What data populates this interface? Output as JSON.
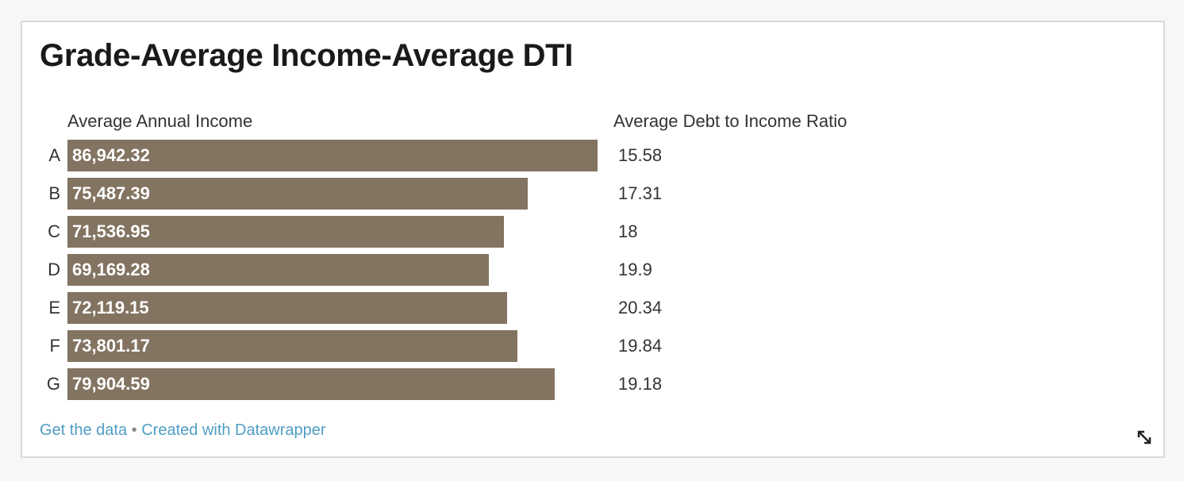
{
  "chart_data": {
    "type": "bar",
    "title": "Grade-Average Income-Average DTI",
    "categories": [
      "A",
      "B",
      "C",
      "D",
      "E",
      "F",
      "G"
    ],
    "series": [
      {
        "name": "Average Annual Income",
        "values": [
          86942.32,
          75487.39,
          71536.95,
          69169.28,
          72119.15,
          73801.17,
          79904.59
        ],
        "labels": [
          "86,942.32",
          "75,487.39",
          "71,536.95",
          "69,169.28",
          "72,119.15",
          "73,801.17",
          "79,904.59"
        ]
      },
      {
        "name": "Average Debt to Income Ratio",
        "values": [
          15.58,
          17.31,
          18,
          19.9,
          20.34,
          19.84,
          19.18
        ],
        "labels": [
          "15.58",
          "17.31",
          "18",
          "19.9",
          "20.34",
          "19.84",
          "19.18"
        ]
      }
    ],
    "bar_color": "#837361",
    "xlim": [
      0,
      86942.32
    ],
    "grid": false
  },
  "footer": {
    "get_data": "Get the data",
    "separator": "•",
    "created_with": "Created with Datawrapper"
  },
  "colors": {
    "link": "#4f9ec4",
    "bar": "#837361"
  },
  "icons": {
    "resize": "resize-icon"
  }
}
